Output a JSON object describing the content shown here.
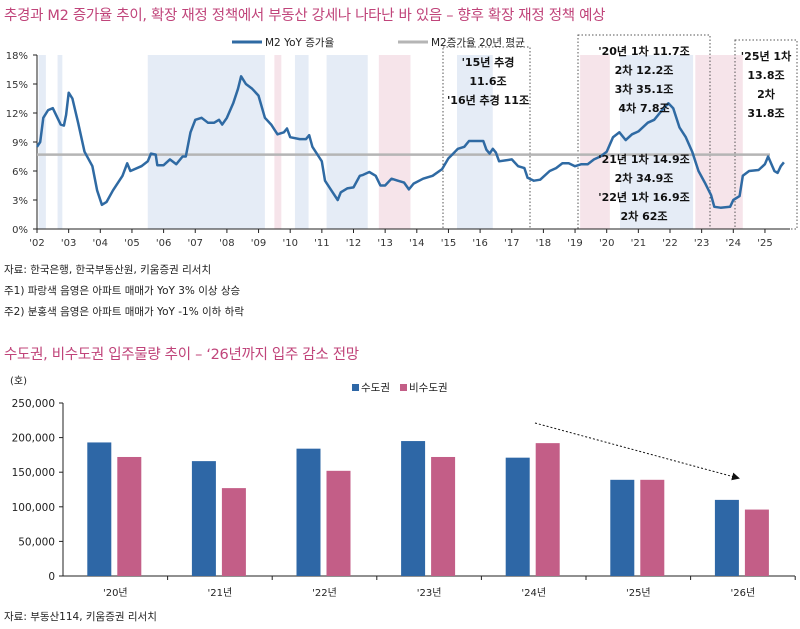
{
  "chart1": {
    "title": "추경과 M2 증가율 추이, 확장 재정 정책에서 부동산 강세나 나타난 바 있음 – 향후 확장 재정 정책 예상",
    "notes": [
      "자료: 한국은행, 한국부동산원, 키움증권 리서치",
      "주1) 파랑색 음영은 아파트 매매가 YoY 3% 이상 상승",
      "주2) 분홍색 음영은 아파트 매매가 YoY -1% 이하 하락"
    ]
  },
  "chart2": {
    "title": "수도권, 비수도권 입주물량 추이 – ‘26년까지 입주 감소 전망",
    "notes": [
      "자료: 부동산114, 키움증권 리서치"
    ]
  },
  "chart_data": [
    {
      "type": "line",
      "legend": [
        "M2 YoY 증가율",
        "M2증가율 20년 평균"
      ],
      "legend_placement": "top",
      "ylim": [
        0,
        18
      ],
      "yticks": [
        "0%",
        "3%",
        "6%",
        "9%",
        "12%",
        "15%",
        "18%"
      ],
      "xticks": [
        "'02",
        "'03",
        "'04",
        "'05",
        "'06",
        "'07",
        "'08",
        "'09",
        "'10",
        "'11",
        "'12",
        "'13",
        "'14",
        "'15",
        "'16",
        "'17",
        "'18",
        "'19",
        "'20",
        "'21",
        "'22",
        "'23",
        "'24",
        "'25"
      ],
      "colors": {
        "m2": "#2f6aa3",
        "avg": "#b5b5b5",
        "blue_shade": "#e5ecf6",
        "pink_shade": "#f6e4ea"
      },
      "average": 7.7,
      "series": [
        {
          "name": "M2 YoY 증가율",
          "points": [
            [
              2002.0,
              8.5
            ],
            [
              2002.1,
              9
            ],
            [
              2002.2,
              11.5
            ],
            [
              2002.35,
              12.3
            ],
            [
              2002.5,
              12.5
            ],
            [
              2002.75,
              10.8
            ],
            [
              2002.85,
              10.7
            ],
            [
              2002.92,
              11.8
            ],
            [
              2003.0,
              14.1
            ],
            [
              2003.12,
              13.5
            ],
            [
              2003.3,
              11
            ],
            [
              2003.5,
              8
            ],
            [
              2003.75,
              6.5
            ],
            [
              2003.9,
              4
            ],
            [
              2004.05,
              2.5
            ],
            [
              2004.2,
              2.8
            ],
            [
              2004.4,
              4
            ],
            [
              2004.7,
              5.5
            ],
            [
              2004.85,
              6.8
            ],
            [
              2004.95,
              6
            ],
            [
              2005.3,
              6.5
            ],
            [
              2005.5,
              7
            ],
            [
              2005.6,
              7.8
            ],
            [
              2005.75,
              7.7
            ],
            [
              2005.8,
              6.6
            ],
            [
              2006.0,
              6.6
            ],
            [
              2006.2,
              7.2
            ],
            [
              2006.4,
              6.7
            ],
            [
              2006.6,
              7.5
            ],
            [
              2006.7,
              7.5
            ],
            [
              2006.85,
              10
            ],
            [
              2007.0,
              11.3
            ],
            [
              2007.2,
              11.5
            ],
            [
              2007.4,
              11
            ],
            [
              2007.6,
              11
            ],
            [
              2007.75,
              11.3
            ],
            [
              2007.85,
              10.8
            ],
            [
              2008.0,
              11.5
            ],
            [
              2008.2,
              13
            ],
            [
              2008.35,
              14.5
            ],
            [
              2008.45,
              15.8
            ],
            [
              2008.6,
              15
            ],
            [
              2008.8,
              14.5
            ],
            [
              2009.0,
              13.8
            ],
            [
              2009.2,
              11.5
            ],
            [
              2009.4,
              10.8
            ],
            [
              2009.6,
              9.8
            ],
            [
              2009.8,
              10
            ],
            [
              2009.9,
              10.4
            ],
            [
              2010.0,
              9.5
            ],
            [
              2010.3,
              9.3
            ],
            [
              2010.5,
              9.3
            ],
            [
              2010.6,
              9.7
            ],
            [
              2010.7,
              8.5
            ],
            [
              2010.9,
              7.5
            ],
            [
              2011.0,
              7
            ],
            [
              2011.1,
              5
            ],
            [
              2011.3,
              4
            ],
            [
              2011.5,
              3
            ],
            [
              2011.6,
              3.8
            ],
            [
              2011.8,
              4.2
            ],
            [
              2012.0,
              4.3
            ],
            [
              2012.2,
              5.5
            ],
            [
              2012.3,
              5.6
            ],
            [
              2012.5,
              5.9
            ],
            [
              2012.7,
              5.5
            ],
            [
              2012.85,
              4.5
            ],
            [
              2013.0,
              4.5
            ],
            [
              2013.2,
              5.2
            ],
            [
              2013.4,
              5
            ],
            [
              2013.6,
              4.8
            ],
            [
              2013.75,
              4.1
            ],
            [
              2013.9,
              4.7
            ],
            [
              2014.2,
              5.2
            ],
            [
              2014.5,
              5.5
            ],
            [
              2014.8,
              6.2
            ],
            [
              2015.0,
              7.3
            ],
            [
              2015.15,
              7.8
            ],
            [
              2015.3,
              8.3
            ],
            [
              2015.5,
              8.5
            ],
            [
              2015.65,
              9.1
            ],
            [
              2015.9,
              9.1
            ],
            [
              2016.1,
              9.1
            ],
            [
              2016.2,
              8.2
            ],
            [
              2016.3,
              7.8
            ],
            [
              2016.4,
              8.3
            ],
            [
              2016.5,
              7.9
            ],
            [
              2016.6,
              7
            ],
            [
              2016.8,
              7.1
            ],
            [
              2017.0,
              7.2
            ],
            [
              2017.2,
              6.5
            ],
            [
              2017.4,
              6.3
            ],
            [
              2017.5,
              5.3
            ],
            [
              2017.7,
              5
            ],
            [
              2017.9,
              5.1
            ],
            [
              2018.2,
              6
            ],
            [
              2018.4,
              6.3
            ],
            [
              2018.6,
              6.8
            ],
            [
              2018.8,
              6.8
            ],
            [
              2019.0,
              6.5
            ],
            [
              2019.2,
              6.7
            ],
            [
              2019.4,
              6.7
            ],
            [
              2019.6,
              7.2
            ],
            [
              2019.8,
              7.5
            ],
            [
              2020.0,
              8
            ],
            [
              2020.2,
              9.5
            ],
            [
              2020.4,
              10
            ],
            [
              2020.6,
              9.2
            ],
            [
              2020.8,
              9.8
            ],
            [
              2021.0,
              10.1
            ],
            [
              2021.3,
              11
            ],
            [
              2021.5,
              11.3
            ],
            [
              2021.8,
              12.5
            ],
            [
              2021.95,
              13
            ],
            [
              2022.1,
              12.5
            ],
            [
              2022.3,
              10.5
            ],
            [
              2022.5,
              9.5
            ],
            [
              2022.7,
              8
            ],
            [
              2022.9,
              6
            ],
            [
              2023.1,
              4.8
            ],
            [
              2023.3,
              3.5
            ],
            [
              2023.4,
              2.3
            ],
            [
              2023.6,
              2.2
            ],
            [
              2023.9,
              2.3
            ],
            [
              2024.0,
              3
            ],
            [
              2024.2,
              3.4
            ],
            [
              2024.3,
              5.5
            ],
            [
              2024.5,
              6
            ],
            [
              2024.8,
              6.1
            ],
            [
              2025.0,
              6.7
            ],
            [
              2025.1,
              7.5
            ],
            [
              2025.3,
              6
            ],
            [
              2025.4,
              5.8
            ],
            [
              2025.5,
              6.5
            ],
            [
              2025.6,
              6.9
            ]
          ]
        }
      ],
      "shaded_periods": {
        "blue": [
          [
            2002.05,
            2002.28
          ],
          [
            2002.65,
            2002.8
          ],
          [
            2005.5,
            2009.2
          ],
          [
            2010.15,
            2010.58
          ],
          [
            2011.15,
            2012.45
          ],
          [
            2015.27,
            2016.4
          ],
          [
            2020.42,
            2022.73
          ]
        ],
        "pink": [
          [
            2009.5,
            2009.72
          ],
          [
            2012.8,
            2013.8
          ],
          [
            2019.16,
            2020.1
          ],
          [
            2022.8,
            2024.3
          ]
        ]
      },
      "annotations": [
        {
          "lines": [
            "'15년 추경",
            "11.6조",
            "'16년 추경 11조"
          ]
        },
        {
          "lines": [
            "'20년 1차 11.7조",
            "2차 12.2조",
            "3차 35.1조",
            "4차 7.8조"
          ],
          "lines2": [
            "'21년 1차 14.9조",
            "2차 34.9조",
            "'22년 1차 16.9조",
            "2차 62조"
          ]
        },
        {
          "lines": [
            "'25년 1차",
            "13.8조",
            "2차",
            "31.8조"
          ]
        }
      ]
    },
    {
      "type": "bar",
      "unit": "(호)",
      "categories": [
        "'20년",
        "'21년",
        "'22년",
        "'23년",
        "'24년",
        "'25년",
        "'26년"
      ],
      "ylim": [
        0,
        250000
      ],
      "yticks": [
        "0",
        "50,000",
        "100,000",
        "150,000",
        "200,000",
        "250,000"
      ],
      "legend_placement": "top-right",
      "series": [
        {
          "name": "수도권",
          "color": "#2e67a6",
          "values": [
            193000,
            166000,
            184000,
            195000,
            171000,
            139000,
            110000
          ]
        },
        {
          "name": "비수도권",
          "color": "#c35e87",
          "values": [
            172000,
            127000,
            152000,
            172000,
            192000,
            139000,
            96000
          ]
        }
      ],
      "trend_arrow": "decreasing"
    }
  ]
}
